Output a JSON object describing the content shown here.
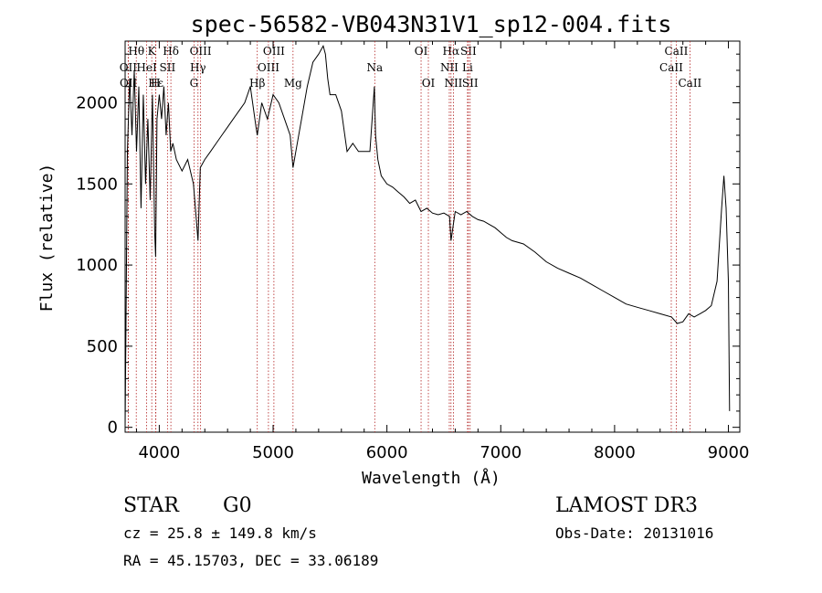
{
  "chart_data": {
    "type": "line",
    "title": "spec-56582-VB043N31V1_sp12-004.fits",
    "xlabel": "Wavelength (Å)",
    "ylabel": "Flux (relative)",
    "xlim": [
      3700,
      9100
    ],
    "ylim": [
      -30,
      2380
    ],
    "x_ticks": [
      4000,
      5000,
      6000,
      7000,
      8000,
      9000
    ],
    "x_tick_labels": [
      "4000",
      "5000",
      "6000",
      "7000",
      "8000",
      "9000"
    ],
    "y_ticks": [
      0,
      500,
      1000,
      1500,
      2000
    ],
    "y_tick_labels": [
      "0",
      "500",
      "1000",
      "1500",
      "2000"
    ],
    "series": [
      {
        "name": "flux",
        "x": [
          3700,
          3720,
          3740,
          3760,
          3780,
          3800,
          3820,
          3840,
          3860,
          3880,
          3900,
          3920,
          3940,
          3960,
          3968,
          3980,
          4000,
          4020,
          4040,
          4060,
          4080,
          4100,
          4120,
          4150,
          4200,
          4250,
          4300,
          4340,
          4360,
          4400,
          4450,
          4500,
          4550,
          4600,
          4650,
          4700,
          4750,
          4800,
          4850,
          4861,
          4900,
          4950,
          5000,
          5050,
          5100,
          5150,
          5175,
          5200,
          5250,
          5300,
          5350,
          5400,
          5440,
          5460,
          5480,
          5500,
          5550,
          5600,
          5650,
          5700,
          5750,
          5800,
          5850,
          5890,
          5900,
          5920,
          5950,
          6000,
          6050,
          6100,
          6150,
          6200,
          6250,
          6300,
          6350,
          6400,
          6450,
          6500,
          6550,
          6563,
          6600,
          6650,
          6700,
          6750,
          6800,
          6850,
          6900,
          6950,
          7000,
          7050,
          7100,
          7200,
          7300,
          7400,
          7500,
          7600,
          7700,
          7800,
          7900,
          8000,
          8100,
          8200,
          8300,
          8400,
          8500,
          8550,
          8600,
          8650,
          8700,
          8750,
          8800,
          8850,
          8900,
          8940,
          8960,
          8980,
          9000,
          9010
        ],
        "y": [
          0,
          1700,
          2150,
          1800,
          2200,
          1700,
          2100,
          1350,
          2050,
          1500,
          1900,
          1400,
          2050,
          1200,
          1050,
          1900,
          2050,
          1900,
          2100,
          1800,
          2000,
          1700,
          1750,
          1650,
          1580,
          1650,
          1500,
          1150,
          1600,
          1650,
          1700,
          1750,
          1800,
          1850,
          1900,
          1950,
          2000,
          2100,
          1850,
          1800,
          2000,
          1900,
          2050,
          2000,
          1900,
          1800,
          1600,
          1700,
          1900,
          2100,
          2250,
          2300,
          2350,
          2300,
          2150,
          2050,
          2050,
          1950,
          1700,
          1750,
          1700,
          1700,
          1700,
          2100,
          1800,
          1650,
          1550,
          1500,
          1480,
          1450,
          1420,
          1380,
          1400,
          1330,
          1350,
          1320,
          1310,
          1320,
          1300,
          1150,
          1330,
          1310,
          1330,
          1300,
          1280,
          1270,
          1250,
          1230,
          1200,
          1170,
          1150,
          1130,
          1080,
          1020,
          980,
          950,
          920,
          880,
          840,
          800,
          760,
          740,
          720,
          700,
          680,
          640,
          650,
          700,
          680,
          700,
          720,
          750,
          900,
          1350,
          1550,
          1350,
          900,
          100
        ]
      }
    ],
    "emission_lines": [
      {
        "label": "Hθ",
        "x": 3798,
        "row": 0
      },
      {
        "label": "K",
        "x": 3934,
        "row": 0
      },
      {
        "label": "Hδ",
        "x": 4102,
        "row": 0
      },
      {
        "label": "OIII",
        "x": 4363,
        "row": 0
      },
      {
        "label": "OIII",
        "x": 5007,
        "row": 0
      },
      {
        "label": "OI",
        "x": 6300,
        "row": 0
      },
      {
        "label": "Hα",
        "x": 6563,
        "row": 0
      },
      {
        "label": "SII",
        "x": 6716,
        "row": 0
      },
      {
        "label": "CaII",
        "x": 8542,
        "row": 0
      },
      {
        "label": "OII",
        "x": 3727,
        "row": 1
      },
      {
        "label": "HeI",
        "x": 3889,
        "row": 1
      },
      {
        "label": "SII",
        "x": 4072,
        "row": 1
      },
      {
        "label": "Hγ",
        "x": 4340,
        "row": 1
      },
      {
        "label": "OIII",
        "x": 4959,
        "row": 1
      },
      {
        "label": "Na",
        "x": 5893,
        "row": 1
      },
      {
        "label": "NII",
        "x": 6548,
        "row": 1
      },
      {
        "label": "Li",
        "x": 6708,
        "row": 1
      },
      {
        "label": "CaII",
        "x": 8498,
        "row": 1
      },
      {
        "label": "OII",
        "x": 3729,
        "row": 2
      },
      {
        "label": "Hε",
        "x": 3970,
        "row": 2
      },
      {
        "label": "H",
        "x": 3968,
        "row": 2
      },
      {
        "label": "G",
        "x": 4305,
        "row": 2
      },
      {
        "label": "Hβ",
        "x": 4861,
        "row": 2
      },
      {
        "label": "Mg",
        "x": 5175,
        "row": 2
      },
      {
        "label": "OI",
        "x": 6364,
        "row": 2
      },
      {
        "label": "NII",
        "x": 6584,
        "row": 2
      },
      {
        "label": "SII",
        "x": 6731,
        "row": 2
      },
      {
        "label": "CaII",
        "x": 8662,
        "row": 2
      }
    ]
  },
  "info": {
    "class": "STAR",
    "subclass": "G0",
    "survey": "LAMOST DR3",
    "cz": "cz = 25.8 ± 149.8 km/s",
    "obs_date": "Obs-Date: 20131016",
    "radec": "RA =  45.15703, DEC =  33.06189"
  },
  "colors": {
    "line": "#000000",
    "emission_marker": "#b22222"
  }
}
